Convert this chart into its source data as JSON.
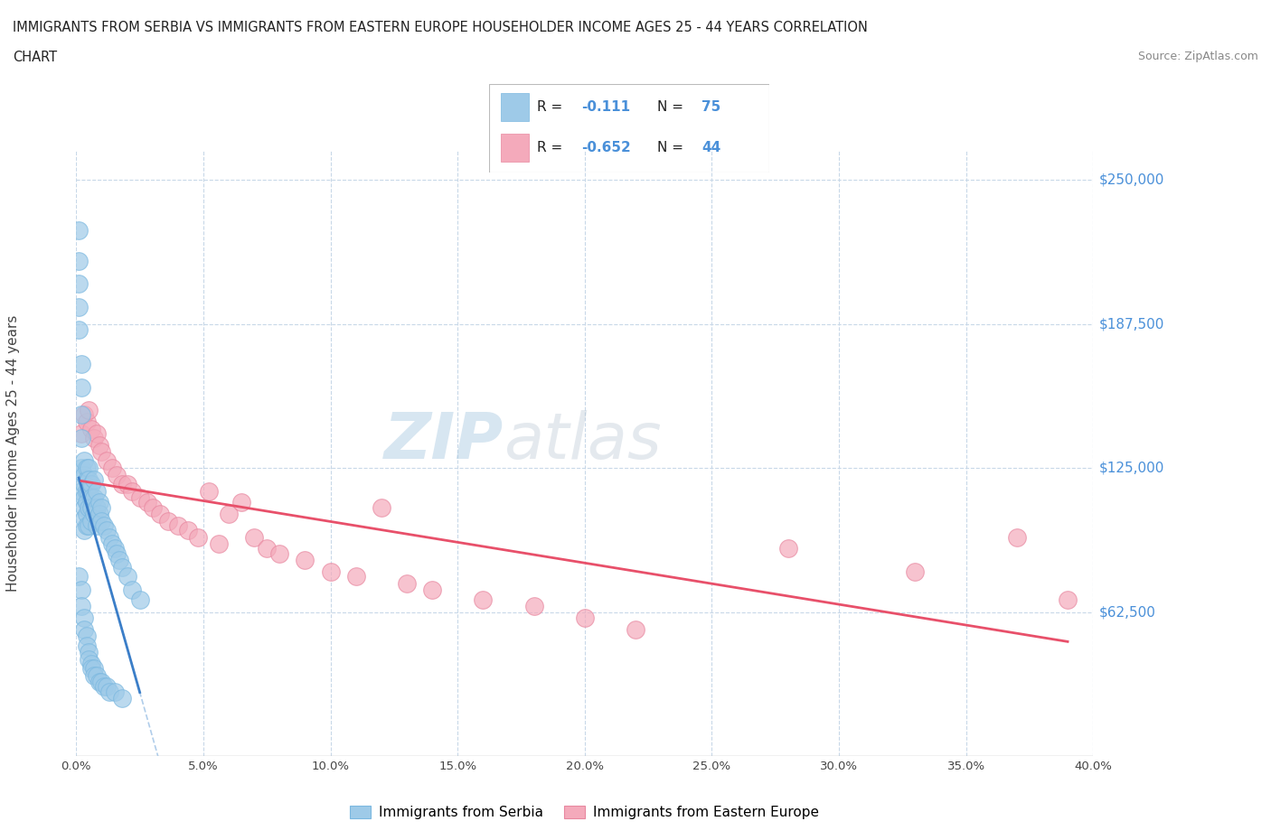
{
  "title_line1": "IMMIGRANTS FROM SERBIA VS IMMIGRANTS FROM EASTERN EUROPE HOUSEHOLDER INCOME AGES 25 - 44 YEARS CORRELATION",
  "title_line2": "CHART",
  "source_text": "Source: ZipAtlas.com",
  "ylabel": "Householder Income Ages 25 - 44 years",
  "xlim": [
    0.0,
    0.4
  ],
  "ylim": [
    0,
    262500
  ],
  "yticks": [
    62500,
    125000,
    187500,
    250000
  ],
  "ytick_labels": [
    "$62,500",
    "$125,000",
    "$187,500",
    "$250,000"
  ],
  "xtick_vals": [
    0.0,
    0.05,
    0.1,
    0.15,
    0.2,
    0.25,
    0.3,
    0.35,
    0.4
  ],
  "xtick_labels": [
    "0.0%",
    "5.0%",
    "10.0%",
    "15.0%",
    "20.0%",
    "25.0%",
    "30.0%",
    "35.0%",
    "40.0%"
  ],
  "watermark_zip": "ZIP",
  "watermark_atlas": "atlas",
  "serbia_R": -0.111,
  "serbia_N": 75,
  "eastern_R": -0.652,
  "eastern_N": 44,
  "serbia_color": "#9ECAE8",
  "serbia_edge_color": "#7BB8E0",
  "eastern_color": "#F4AABB",
  "eastern_edge_color": "#E888A0",
  "serbia_line_color": "#3B7EC8",
  "eastern_line_color": "#E8506A",
  "trendline_dash_color": "#A8C8E8",
  "ytick_color": "#4A90D9",
  "serbia_x": [
    0.001,
    0.001,
    0.001,
    0.001,
    0.001,
    0.002,
    0.002,
    0.002,
    0.002,
    0.002,
    0.002,
    0.003,
    0.003,
    0.003,
    0.003,
    0.003,
    0.003,
    0.003,
    0.004,
    0.004,
    0.004,
    0.004,
    0.004,
    0.004,
    0.005,
    0.005,
    0.005,
    0.005,
    0.005,
    0.006,
    0.006,
    0.006,
    0.006,
    0.007,
    0.007,
    0.007,
    0.008,
    0.008,
    0.008,
    0.009,
    0.009,
    0.01,
    0.01,
    0.011,
    0.012,
    0.013,
    0.014,
    0.015,
    0.016,
    0.017,
    0.018,
    0.02,
    0.022,
    0.025,
    0.001,
    0.002,
    0.002,
    0.003,
    0.003,
    0.004,
    0.004,
    0.005,
    0.005,
    0.006,
    0.006,
    0.007,
    0.007,
    0.008,
    0.009,
    0.01,
    0.011,
    0.012,
    0.013,
    0.015,
    0.018
  ],
  "serbia_y": [
    195000,
    215000,
    228000,
    205000,
    185000,
    170000,
    160000,
    148000,
    138000,
    125000,
    115000,
    128000,
    122000,
    118000,
    112000,
    108000,
    103000,
    98000,
    125000,
    120000,
    115000,
    110000,
    105000,
    100000,
    125000,
    120000,
    115000,
    108000,
    100000,
    118000,
    112000,
    108000,
    102000,
    120000,
    112000,
    105000,
    115000,
    108000,
    100000,
    110000,
    105000,
    108000,
    102000,
    100000,
    98000,
    95000,
    92000,
    90000,
    88000,
    85000,
    82000,
    78000,
    72000,
    68000,
    78000,
    72000,
    65000,
    60000,
    55000,
    52000,
    48000,
    45000,
    42000,
    40000,
    38000,
    38000,
    35000,
    35000,
    32000,
    32000,
    30000,
    30000,
    28000,
    28000,
    25000
  ],
  "eastern_x": [
    0.002,
    0.003,
    0.004,
    0.005,
    0.006,
    0.007,
    0.008,
    0.009,
    0.01,
    0.012,
    0.014,
    0.016,
    0.018,
    0.02,
    0.022,
    0.025,
    0.028,
    0.03,
    0.033,
    0.036,
    0.04,
    0.044,
    0.048,
    0.052,
    0.056,
    0.06,
    0.065,
    0.07,
    0.075,
    0.08,
    0.09,
    0.1,
    0.11,
    0.12,
    0.13,
    0.14,
    0.16,
    0.18,
    0.2,
    0.22,
    0.28,
    0.33,
    0.37,
    0.39
  ],
  "eastern_y": [
    140000,
    148000,
    145000,
    150000,
    142000,
    138000,
    140000,
    135000,
    132000,
    128000,
    125000,
    122000,
    118000,
    118000,
    115000,
    112000,
    110000,
    108000,
    105000,
    102000,
    100000,
    98000,
    95000,
    115000,
    92000,
    105000,
    110000,
    95000,
    90000,
    88000,
    85000,
    80000,
    78000,
    108000,
    75000,
    72000,
    68000,
    65000,
    60000,
    55000,
    90000,
    80000,
    95000,
    68000
  ]
}
